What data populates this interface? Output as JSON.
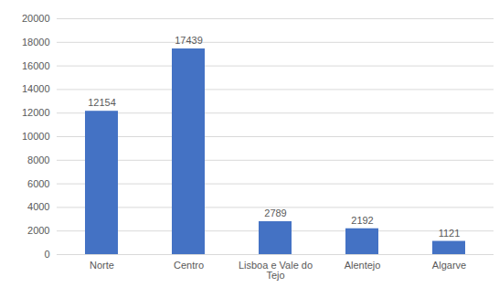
{
  "chart_data": {
    "type": "bar",
    "categories": [
      "Norte",
      "Centro",
      "Lisboa e Vale do Tejo",
      "Alentejo",
      "Algarve"
    ],
    "values": [
      12154,
      17439,
      2789,
      2192,
      1121
    ],
    "color": "#4472c4",
    "ylim": [
      0,
      20000
    ],
    "yticks": [
      0,
      2000,
      4000,
      6000,
      8000,
      10000,
      12000,
      14000,
      16000,
      18000,
      20000
    ],
    "grid": true,
    "data_labels": true
  }
}
